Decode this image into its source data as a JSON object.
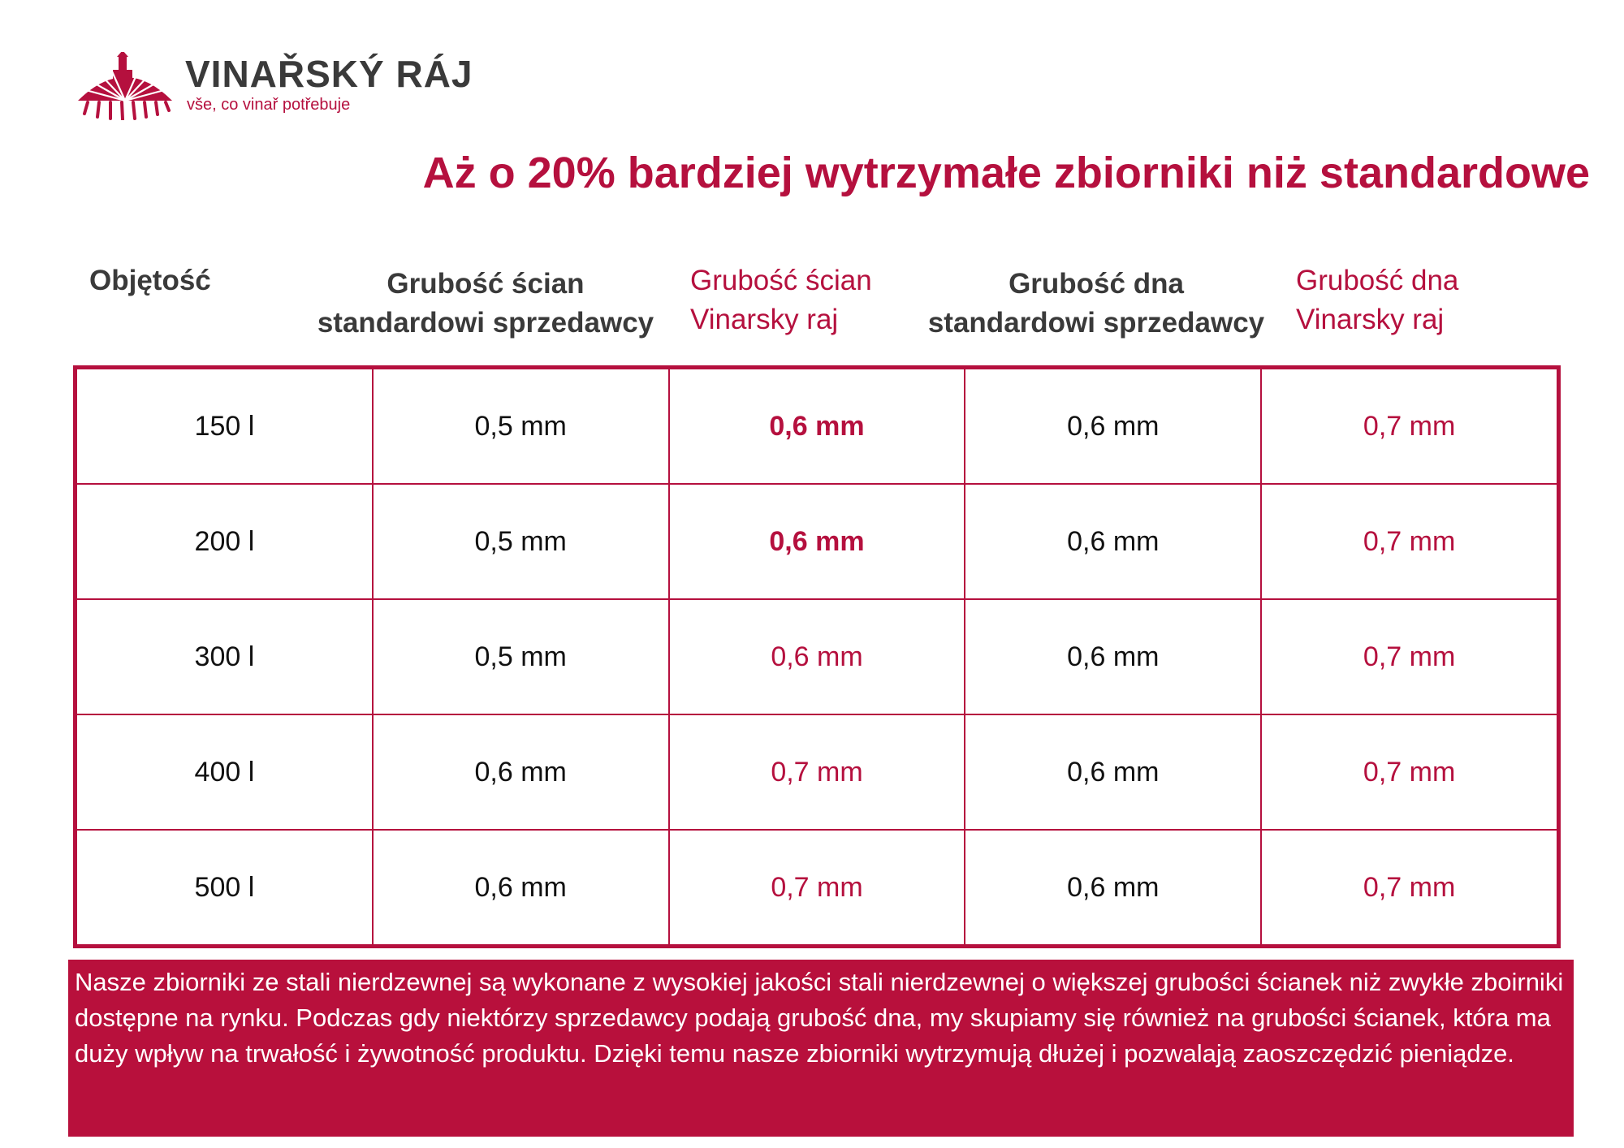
{
  "brand": {
    "name": "VINAŘSKÝ RÁJ",
    "tagline": "vše, co vinař potřebuje",
    "accent_color": "#b5103e",
    "logo_icon": "castle-vineyard-icon"
  },
  "headline": "Aż o 20% bardziej wytrzymałe zbiorniki niż standardowe",
  "table": {
    "headers": [
      {
        "line1": "Objętość",
        "line2": ""
      },
      {
        "line1": "Grubość ścian",
        "line2": "standardowi sprzedawcy"
      },
      {
        "line1": "Grubość ścian",
        "line2": "Vinarsky raj"
      },
      {
        "line1": "Grubość dna",
        "line2": "standardowi sprzedawcy"
      },
      {
        "line1": "Grubość dna",
        "line2": "Vinarsky raj"
      }
    ],
    "rows": [
      [
        "150 l",
        "0,5 mm",
        "0,6 mm",
        "0,6 mm",
        "0,7 mm"
      ],
      [
        "200 l",
        "0,5 mm",
        "0,6 mm",
        "0,6 mm",
        "0,7 mm"
      ],
      [
        "300 l",
        "0,5 mm",
        "0,6 mm",
        "0,6 mm",
        "0,7 mm"
      ],
      [
        "400 l",
        "0,6 mm",
        "0,7 mm",
        "0,6 mm",
        "0,7 mm"
      ],
      [
        "500 l",
        "0,6 mm",
        "0,7 mm",
        "0,6 mm",
        "0,7 mm"
      ]
    ]
  },
  "note": "Nasze zbiorniki ze stali nierdzewnej są wykonane z wysokiej jakości stali nierdzewnej o większej grubości ścianek niż zwykłe zboirniki dostępne na rynku. Podczas gdy niektórzy sprzedawcy podają grubość dna, my skupiamy się również na grubości ścianek, która ma duży wpływ na trwałość i żywotność produktu. Dzięki temu nasze zbiorniki wytrzymują dłużej i pozwalają zaoszczędzić pieniądze."
}
